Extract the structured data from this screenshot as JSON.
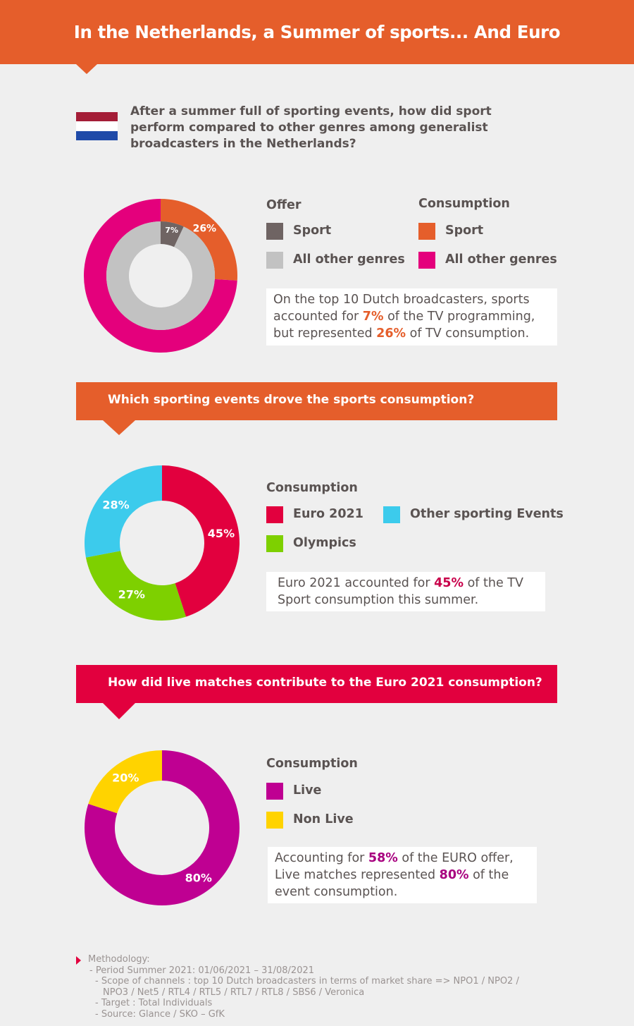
{
  "header": {
    "title": "In the Netherlands, a Summer of sports... And Euro"
  },
  "colors": {
    "header": "#e55e2b",
    "text": "#5a5352",
    "background": "#efefef",
    "flag_red": "#a41d37",
    "flag_white": "#ffffff",
    "flag_blue": "#1f4aa8",
    "euro_banner": "#e2003e"
  },
  "section1": {
    "question": "After a summer full of sporting events, how did sport perform compared to other genres among generalist broadcasters in the Netherlands?",
    "legend": {
      "offer_title": "Offer",
      "consumption_title": "Consumption",
      "offer_items": [
        {
          "label": "Sport",
          "color": "#6f6463"
        },
        {
          "label": "All other genres",
          "color": "#c2c2c2"
        }
      ],
      "consumption_items": [
        {
          "label": "Sport",
          "color": "#e55e2b"
        },
        {
          "label": "All other genres",
          "color": "#e4007c"
        }
      ]
    },
    "note": {
      "p1": "On the top 10 Dutch broadcasters, sports accounted for ",
      "v1": "7%",
      "p2": " of the TV programming, but represented ",
      "v2": "26%",
      "p3": " of TV consumption.",
      "accent": "#e55e2b"
    }
  },
  "section2": {
    "banner": "Which sporting events drove the sports consumption?",
    "banner_color": "#e55e2b",
    "legend_title": "Consumption",
    "legend_items": [
      {
        "label": "Euro 2021",
        "color": "#e2003e"
      },
      {
        "label": "Other sporting Events",
        "color": "#3ccbec"
      },
      {
        "label": "Olympics",
        "color": "#7ed000"
      }
    ],
    "note": {
      "p1": "Euro 2021 accounted for ",
      "v1": "45%",
      "p2": " of the TV Sport consumption this summer.",
      "accent": "#c8004a"
    }
  },
  "section3": {
    "banner": "How did live matches contribute to the Euro 2021 consumption?",
    "banner_color": "#e2003e",
    "legend_title": "Consumption",
    "legend_items": [
      {
        "label": "Live",
        "color": "#bf0092"
      },
      {
        "label": "Non Live",
        "color": "#ffd300"
      }
    ],
    "note": {
      "p1": "Accounting for ",
      "v1": "58%",
      "p2": " of the EURO offer, Live matches represented ",
      "v2": "80%",
      "p3": " of the event consumption.",
      "accent": "#a8007f"
    }
  },
  "chart_data": [
    {
      "type": "pie",
      "chart": "sport-vs-genres",
      "series": [
        {
          "name": "Offer",
          "slices": [
            {
              "label": "Sport",
              "value": 7,
              "text": "7%",
              "color": "#6f6463"
            },
            {
              "label": "All other genres",
              "value": 93,
              "text": "",
              "color": "#c2c2c2"
            }
          ]
        },
        {
          "name": "Consumption",
          "slices": [
            {
              "label": "Sport",
              "value": 26,
              "text": "26%",
              "color": "#e55e2b"
            },
            {
              "label": "All other genres",
              "value": 74,
              "text": "",
              "color": "#e4007c"
            }
          ]
        }
      ]
    },
    {
      "type": "pie",
      "chart": "sporting-events",
      "series": [
        {
          "name": "Consumption",
          "slices": [
            {
              "label": "Euro 2021",
              "value": 45,
              "text": "45%",
              "color": "#e2003e"
            },
            {
              "label": "Olympics",
              "value": 27,
              "text": "27%",
              "color": "#7ed000"
            },
            {
              "label": "Other sporting Events",
              "value": 28,
              "text": "28%",
              "color": "#3ccbec"
            }
          ]
        }
      ]
    },
    {
      "type": "pie",
      "chart": "live-vs-nonlive",
      "series": [
        {
          "name": "Consumption",
          "slices": [
            {
              "label": "Live",
              "value": 80,
              "text": "80%",
              "color": "#bf0092"
            },
            {
              "label": "Non Live",
              "value": 20,
              "text": "20%",
              "color": "#ffd300"
            }
          ]
        }
      ]
    }
  ],
  "methodology": {
    "lines": [
      "Methodology:",
      "- Period Summer 2021: 01/06/2021 – 31/08/2021",
      "- Scope of channels : top 10 Dutch broadcasters in terms of market share => NPO1 / NPO2 /",
      "NPO3 / Net5 / RTL4 / RTL5 / RTL7 / RTL8 / SBS6 / Veronica",
      "- Target : Total Individuals",
      "- Source: Glance / SKO – GfK"
    ]
  }
}
